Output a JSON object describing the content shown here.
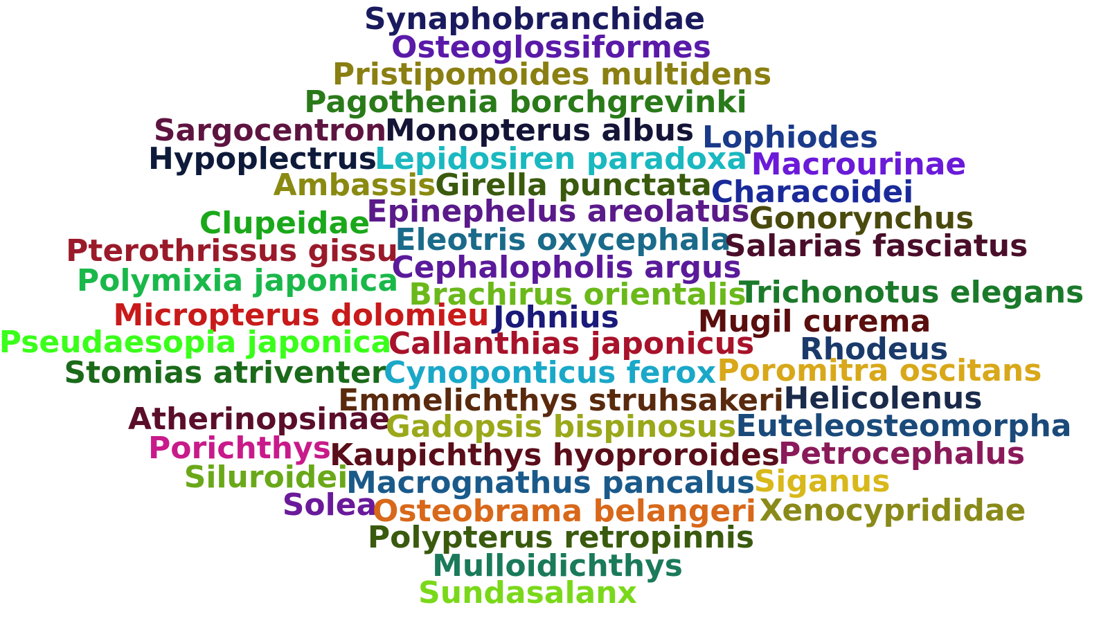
{
  "words": [
    {
      "text": "Synaphobranchidae",
      "color": "#1a1a5e"
    },
    {
      "text": "Osteoglossiformes",
      "color": "#5a1aa8"
    },
    {
      "text": "Pristipomoides multidens",
      "color": "#8a7f12"
    },
    {
      "text": "Pagothenia borchgrevinki",
      "color": "#2a7a1a"
    },
    {
      "text": "Sargocentron",
      "color": "#5e1440"
    },
    {
      "text": "Monopterus albus",
      "color": "#141437"
    },
    {
      "text": "Lophiodes",
      "color": "#1a3a8a"
    },
    {
      "text": "Hypoplectrus",
      "color": "#0e1a3a"
    },
    {
      "text": "Lepidosiren paradoxa",
      "color": "#1ab8c0"
    },
    {
      "text": "Macrourinae",
      "color": "#6a1ad8"
    },
    {
      "text": "Ambassis",
      "color": "#8a8a12"
    },
    {
      "text": "Girella punctata",
      "color": "#3a5a0e"
    },
    {
      "text": "Characoidei",
      "color": "#1a2a9a"
    },
    {
      "text": "Epinephelus areolatus",
      "color": "#5a1a8a"
    },
    {
      "text": "Clupeidae",
      "color": "#1aa81a"
    },
    {
      "text": "Gonorynchus",
      "color": "#4a4a0e"
    },
    {
      "text": "Pterothrissus gissu",
      "color": "#9a1a2a"
    },
    {
      "text": "Eleotris oxycephala",
      "color": "#1a6a8a"
    },
    {
      "text": "Salarias fasciatus",
      "color": "#4a0e2a"
    },
    {
      "text": "Cephalopholis argus",
      "color": "#5a1a9a"
    },
    {
      "text": "Polymixia japonica",
      "color": "#1ab84a"
    },
    {
      "text": "Brachirus orientalis",
      "color": "#6ab81a"
    },
    {
      "text": "Trichonotus elegans",
      "color": "#1a7a2a"
    },
    {
      "text": "Micropterus dolomieu",
      "color": "#c81a1a"
    },
    {
      "text": "Johnius",
      "color": "#1a1a7a"
    },
    {
      "text": "Mugil curema",
      "color": "#5a0e0e"
    },
    {
      "text": "Pseudaesopia japonica",
      "color": "#3aff1a"
    },
    {
      "text": "Callanthias japonicus",
      "color": "#a8122a"
    },
    {
      "text": "Rhodeus",
      "color": "#1a3a6a"
    },
    {
      "text": "Stomias atriventer",
      "color": "#1a6a1a"
    },
    {
      "text": "Cynoponticus ferox",
      "color": "#1aa8c8"
    },
    {
      "text": "Poromitra oscitans",
      "color": "#d8a81a"
    },
    {
      "text": "Emmelichthys struhsakeri",
      "color": "#5a2a0e"
    },
    {
      "text": "Helicolenus",
      "color": "#1a2a4a"
    },
    {
      "text": "Atherinopsinae",
      "color": "#5a0e2a"
    },
    {
      "text": "Gadopsis bispinosus",
      "color": "#9aa81a"
    },
    {
      "text": "Euteleosteomorpha",
      "color": "#1a4a7a"
    },
    {
      "text": "Porichthys",
      "color": "#c81a8a"
    },
    {
      "text": "Kaupichthys hyoproroides",
      "color": "#5a0e1a"
    },
    {
      "text": "Petrocephalus",
      "color": "#8a1a5a"
    },
    {
      "text": "Siluroidei",
      "color": "#6aa81a"
    },
    {
      "text": "Macrognathus pancalus",
      "color": "#1a5a8a"
    },
    {
      "text": "Siganus",
      "color": "#d8b81a"
    },
    {
      "text": "Solea",
      "color": "#6a1a9a"
    },
    {
      "text": "Osteobrama belangeri",
      "color": "#d8681a"
    },
    {
      "text": "Xenocyprididae",
      "color": "#8a8a1a"
    },
    {
      "text": "Polypterus retropinnis",
      "color": "#3a5a0e"
    },
    {
      "text": "Mulloidichthys",
      "color": "#1a7a5a"
    },
    {
      "text": "Sundasalanx",
      "color": "#7ad81a"
    }
  ]
}
